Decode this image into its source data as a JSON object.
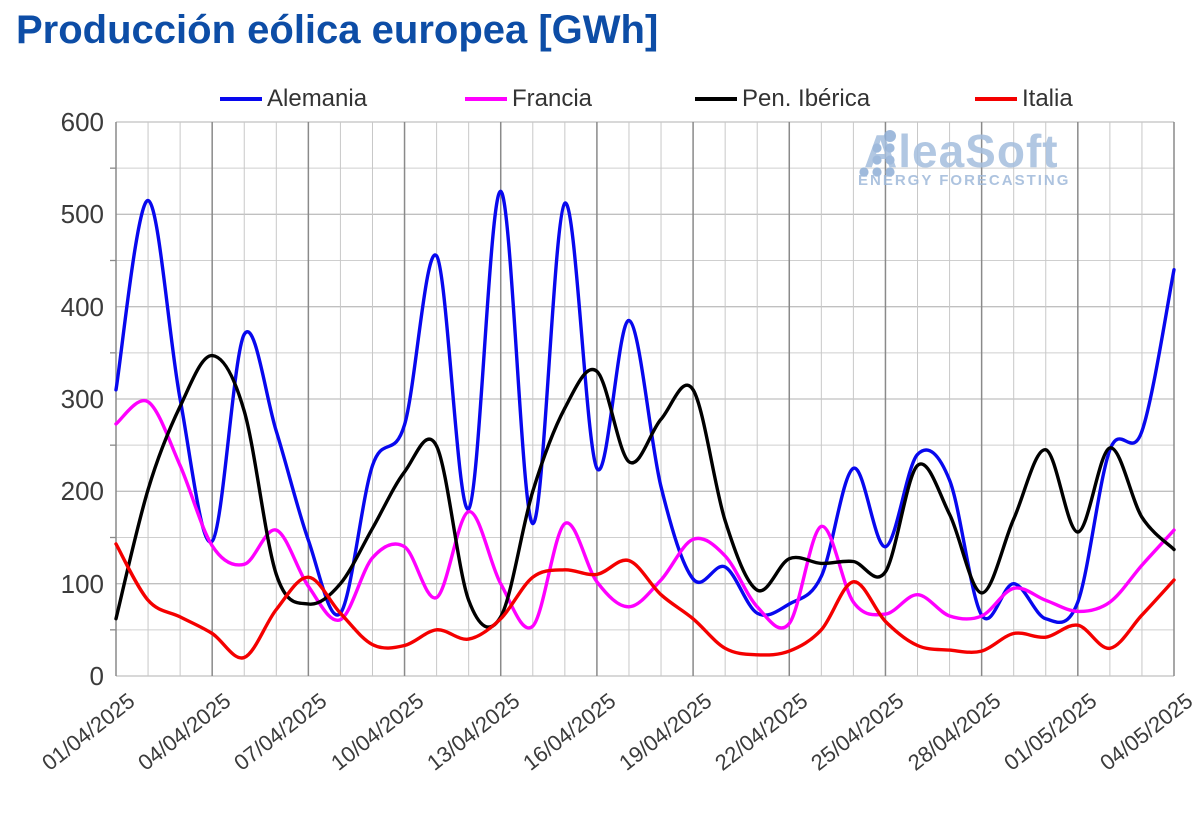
{
  "title": "Producción eólica europea [GWh]",
  "title_color": "#0d4da6",
  "watermark": {
    "name": "AleaSoft",
    "subtitle": "ENERGY FORECASTING",
    "color": "#a4bede",
    "dots_color": "#8fafd6"
  },
  "chart_data": {
    "type": "line",
    "title": "Producción eólica europea [GWh]",
    "xlabel": "",
    "ylabel": "",
    "ylim": [
      0,
      600
    ],
    "y_ticks": [
      0,
      100,
      200,
      300,
      400,
      500,
      600
    ],
    "y_minor_step": 50,
    "x_tick_step": 3,
    "grid": "on",
    "legend_position": "top",
    "x": [
      "01/04/2025",
      "02/04/2025",
      "03/04/2025",
      "04/04/2025",
      "05/04/2025",
      "06/04/2025",
      "07/04/2025",
      "08/04/2025",
      "09/04/2025",
      "10/04/2025",
      "11/04/2025",
      "12/04/2025",
      "13/04/2025",
      "14/04/2025",
      "15/04/2025",
      "16/04/2025",
      "17/04/2025",
      "18/04/2025",
      "19/04/2025",
      "20/04/2025",
      "21/04/2025",
      "22/04/2025",
      "23/04/2025",
      "24/04/2025",
      "25/04/2025",
      "26/04/2025",
      "27/04/2025",
      "28/04/2025",
      "29/04/2025",
      "30/04/2025",
      "01/05/2025",
      "02/05/2025",
      "03/05/2025",
      "04/05/2025"
    ],
    "series": [
      {
        "name": "Alemania",
        "color": "#0808ee",
        "values": [
          310,
          515,
          300,
          146,
          370,
          265,
          147,
          68,
          228,
          272,
          455,
          181,
          525,
          165,
          512,
          225,
          385,
          205,
          105,
          118,
          68,
          78,
          108,
          225,
          140,
          240,
          212,
          66,
          100,
          62,
          80,
          245,
          265,
          440
        ]
      },
      {
        "name": "Francia",
        "color": "#ff00ff",
        "values": [
          273,
          297,
          228,
          141,
          121,
          158,
          97,
          61,
          128,
          140,
          85,
          178,
          100,
          54,
          165,
          102,
          75,
          104,
          148,
          130,
          75,
          57,
          162,
          80,
          67,
          88,
          65,
          65,
          95,
          82,
          70,
          80,
          120,
          158
        ]
      },
      {
        "name": "Pen. Ibérica",
        "color": "#000000",
        "values": [
          62,
          202,
          292,
          347,
          287,
          110,
          78,
          100,
          160,
          221,
          249,
          82,
          64,
          200,
          290,
          330,
          232,
          278,
          310,
          168,
          93,
          127,
          122,
          124,
          113,
          228,
          175,
          90,
          170,
          245,
          156,
          247,
          172,
          137
        ]
      },
      {
        "name": "Italia",
        "color": "#f40000",
        "values": [
          143,
          82,
          64,
          46,
          20,
          72,
          107,
          68,
          34,
          33,
          50,
          40,
          62,
          107,
          115,
          110,
          125,
          88,
          62,
          30,
          23,
          27,
          50,
          102,
          59,
          33,
          28,
          27,
          46,
          42,
          55,
          30,
          66,
          104
        ]
      }
    ]
  }
}
